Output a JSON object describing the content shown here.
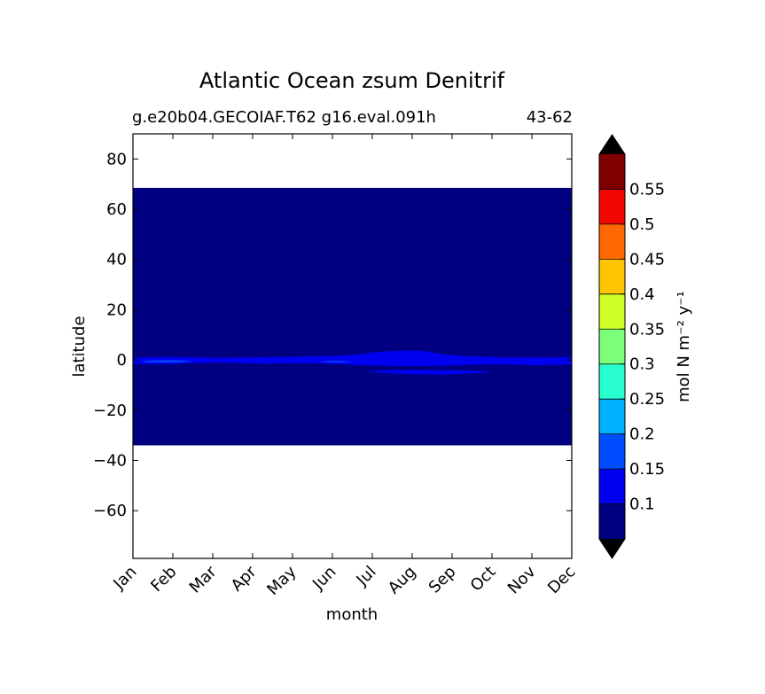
{
  "chart_data": {
    "type": "heatmap",
    "title": "Atlantic Ocean zsum Denitrif",
    "subtitle_left": "g.e20b04.GECOIAF.T62 g16.eval.091h",
    "subtitle_right": "43-62",
    "xlabel": "month",
    "ylabel": "latitude",
    "x_categories": [
      "Jan",
      "Feb",
      "Mar",
      "Apr",
      "May",
      "Jun",
      "Jul",
      "Aug",
      "Sep",
      "Oct",
      "Nov",
      "Dec"
    ],
    "y_ticks": [
      80,
      60,
      40,
      20,
      0,
      -20,
      -40,
      -60
    ],
    "y_tick_labels": [
      "80",
      "60",
      "40",
      "20",
      "0",
      "−20",
      "−40",
      "−60"
    ],
    "ylim": [
      -79,
      90
    ],
    "data_extent": {
      "lat_min": -34,
      "lat_max": 68.5
    },
    "colorbar": {
      "label": "mol N m⁻² y⁻¹",
      "levels": [
        0.05,
        0.1,
        0.15,
        0.2,
        0.25,
        0.3,
        0.35,
        0.4,
        0.45,
        0.5,
        0.55,
        0.6
      ],
      "tick_values": [
        0.1,
        0.15,
        0.2,
        0.25,
        0.3,
        0.35,
        0.4,
        0.45,
        0.5,
        0.55
      ],
      "tick_labels": [
        "0.1",
        "0.15",
        "0.2",
        "0.25",
        "0.3",
        "0.35",
        "0.4",
        "0.45",
        "0.5",
        "0.55"
      ],
      "colors": [
        "#000080",
        "#0000f1",
        "#004dff",
        "#00b1ff",
        "#29ffce",
        "#7dff7a",
        "#ceff29",
        "#ffc400",
        "#ff6800",
        "#f10800",
        "#800000"
      ],
      "extend": "both",
      "under_color": "#000000",
      "over_color": "#000000"
    },
    "background_level_color": "#000080",
    "features": [
      {
        "level_color": "#0000f1",
        "points": [
          [
            0.0,
            0.8
          ],
          [
            0.4,
            1.1
          ],
          [
            1.0,
            1.2
          ],
          [
            1.6,
            1.0
          ],
          [
            2.2,
            0.8
          ],
          [
            2.8,
            1.0
          ],
          [
            3.5,
            1.2
          ],
          [
            4.2,
            1.3
          ],
          [
            4.8,
            1.5
          ],
          [
            5.3,
            1.8
          ],
          [
            5.7,
            2.3
          ],
          [
            6.0,
            3.0
          ],
          [
            6.4,
            3.5
          ],
          [
            6.9,
            3.7
          ],
          [
            7.3,
            3.6
          ],
          [
            7.5,
            3.0
          ],
          [
            7.8,
            2.2
          ],
          [
            8.3,
            1.6
          ],
          [
            9.0,
            1.2
          ],
          [
            9.6,
            0.9
          ],
          [
            10.2,
            1.0
          ],
          [
            10.7,
            1.1
          ],
          [
            11.0,
            0.9
          ],
          [
            11.0,
            -1.8
          ],
          [
            10.6,
            -2.0
          ],
          [
            10.1,
            -2.1
          ],
          [
            9.6,
            -1.9
          ],
          [
            9.0,
            -1.7
          ],
          [
            8.4,
            -1.9
          ],
          [
            7.8,
            -2.3
          ],
          [
            7.2,
            -2.4
          ],
          [
            6.6,
            -2.4
          ],
          [
            6.0,
            -2.2
          ],
          [
            5.5,
            -2.0
          ],
          [
            5.0,
            -1.6
          ],
          [
            4.5,
            -1.3
          ],
          [
            4.0,
            -1.3
          ],
          [
            3.3,
            -1.5
          ],
          [
            2.6,
            -1.2
          ],
          [
            2.0,
            -1.0
          ],
          [
            1.3,
            -1.4
          ],
          [
            0.6,
            -1.8
          ],
          [
            0.0,
            -1.6
          ]
        ]
      },
      {
        "level_color": "#0000f1",
        "points": [
          [
            5.8,
            -4.6
          ],
          [
            6.3,
            -4.1
          ],
          [
            7.0,
            -3.9
          ],
          [
            7.8,
            -4.1
          ],
          [
            8.5,
            -4.3
          ],
          [
            9.0,
            -4.6
          ],
          [
            8.6,
            -5.4
          ],
          [
            7.8,
            -5.8
          ],
          [
            7.0,
            -5.7
          ],
          [
            6.4,
            -5.3
          ]
        ]
      },
      {
        "level_color": "#004dff",
        "points": [
          [
            0.2,
            -0.5
          ],
          [
            0.5,
            -0.2
          ],
          [
            0.9,
            -0.1
          ],
          [
            1.3,
            -0.3
          ],
          [
            1.5,
            -0.6
          ],
          [
            1.2,
            -0.9
          ],
          [
            0.7,
            -1.0
          ],
          [
            0.3,
            -0.8
          ]
        ]
      },
      {
        "level_color": "#004dff",
        "points": [
          [
            4.7,
            -0.6
          ],
          [
            5.0,
            -0.4
          ],
          [
            5.3,
            -0.5
          ],
          [
            5.5,
            -0.8
          ],
          [
            5.2,
            -1.0
          ],
          [
            4.8,
            -0.9
          ]
        ]
      }
    ],
    "grid": false
  }
}
